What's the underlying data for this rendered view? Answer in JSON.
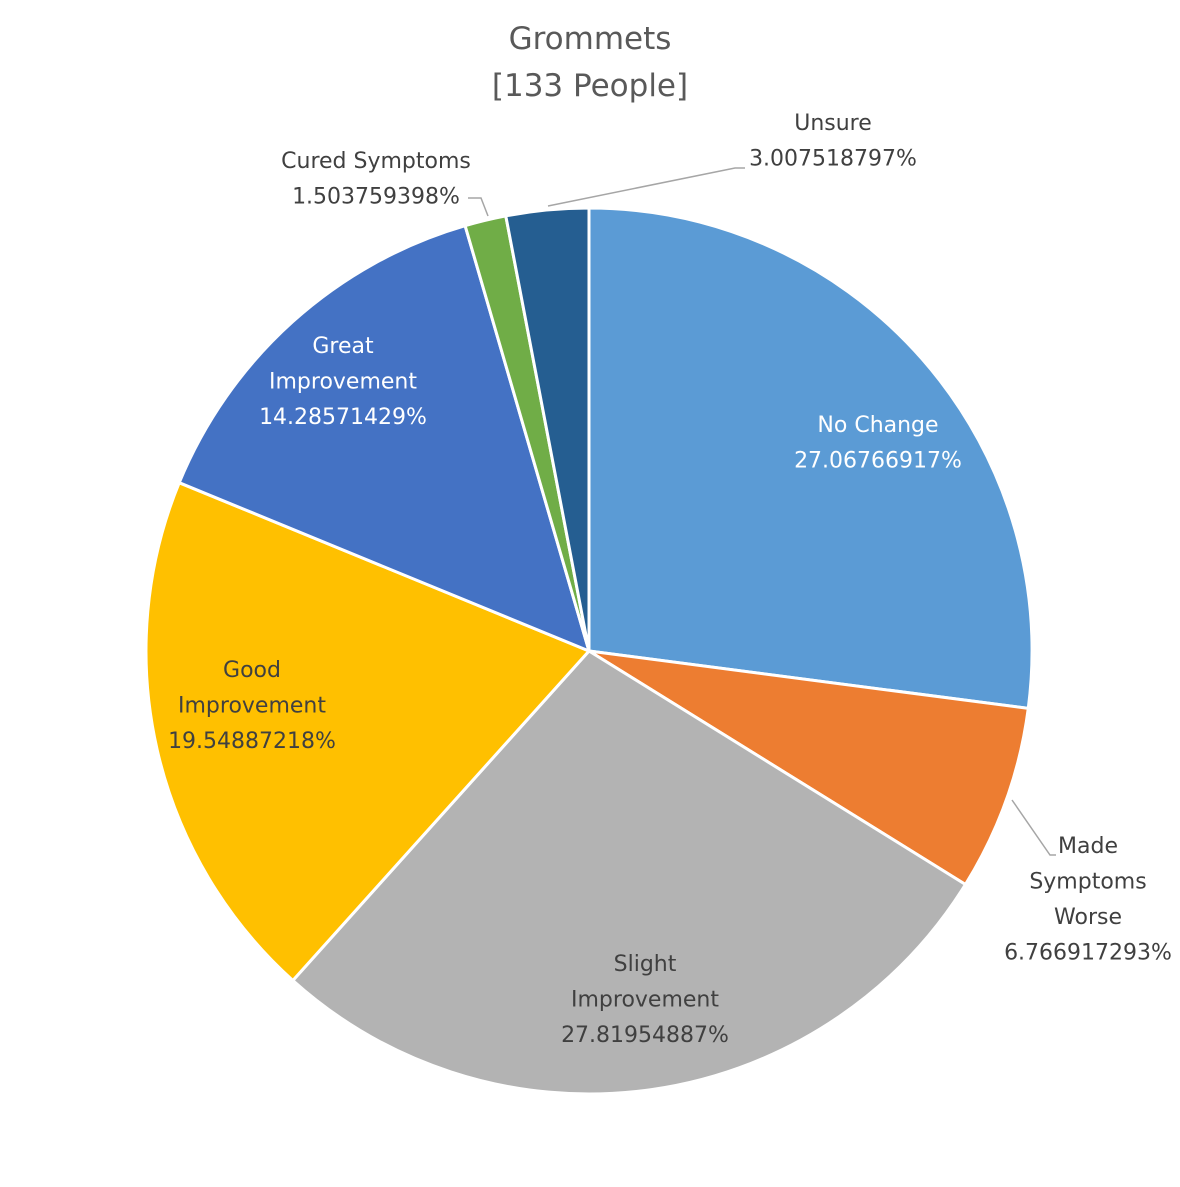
{
  "chart_data": {
    "type": "pie",
    "title": "Grommets",
    "subtitle": "[133 People]",
    "start_angle_deg": 0,
    "direction": "clockwise",
    "slices": [
      {
        "name": "No Change",
        "lines": [
          "No Change"
        ],
        "value": 27.06766917,
        "value_label": "27.06766917%",
        "color": "#5B9BD5",
        "text_color": "#ffffff"
      },
      {
        "name": "Made Symptoms Worse",
        "lines": [
          "Made",
          "Symptoms",
          "Worse"
        ],
        "value": 6.766917293,
        "value_label": "6.766917293%",
        "color": "#ED7D31",
        "text_color": "#404040"
      },
      {
        "name": "Slight Improvement",
        "lines": [
          "Slight",
          "Improvement"
        ],
        "value": 27.81954887,
        "value_label": "27.81954887%",
        "color": "#B3B3B3",
        "text_color": "#404040"
      },
      {
        "name": "Good Improvement",
        "lines": [
          "Good",
          "Improvement"
        ],
        "value": 19.54887218,
        "value_label": "19.54887218%",
        "color": "#FFC000",
        "text_color": "#404040"
      },
      {
        "name": "Great Improvement",
        "lines": [
          "Great",
          "Improvement"
        ],
        "value": 14.28571429,
        "value_label": "14.28571429%",
        "color": "#4472C4",
        "text_color": "#ffffff"
      },
      {
        "name": "Cured Symptoms",
        "lines": [
          "Cured Symptoms"
        ],
        "value": 1.503759398,
        "value_label": "1.503759398%",
        "color": "#70AD47",
        "text_color": "#404040"
      },
      {
        "name": "Unsure",
        "lines": [
          "Unsure"
        ],
        "value": 3.007518797,
        "value_label": "3.007518797%",
        "color": "#255E91",
        "text_color": "#404040"
      }
    ]
  }
}
